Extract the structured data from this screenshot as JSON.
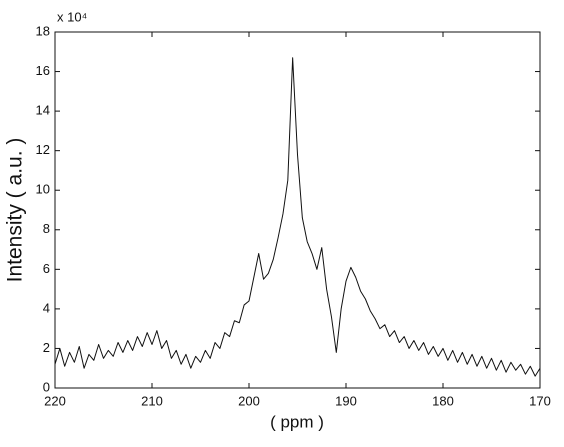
{
  "chart_data": {
    "type": "line",
    "multiplier": "x 10⁴",
    "x_label": "( ppm )",
    "y_label": "Intensity ( a.u. )",
    "x": [
      220,
      219.5,
      219,
      218.5,
      218,
      217.5,
      217,
      216.5,
      216,
      215.5,
      215,
      214.5,
      214,
      213.5,
      213,
      212.5,
      212,
      211.5,
      211,
      210.5,
      210,
      209.5,
      209,
      208.5,
      208,
      207.5,
      207,
      206.5,
      206,
      205.5,
      205,
      204.5,
      204,
      203.5,
      203,
      202.5,
      202,
      201.5,
      201,
      200.5,
      200,
      199.5,
      199,
      198.5,
      198,
      197.5,
      197,
      196.5,
      196,
      195.5,
      195,
      194.5,
      194,
      193.5,
      193,
      192.5,
      192,
      191.5,
      191,
      190.5,
      190,
      189.5,
      189,
      188.5,
      188,
      187.5,
      187,
      186.5,
      186,
      185.5,
      185,
      184.5,
      184,
      183.5,
      183,
      182.5,
      182,
      181.5,
      181,
      180.5,
      180,
      179.5,
      179,
      178.5,
      178,
      177.5,
      177,
      176.5,
      176,
      175.5,
      175,
      174.5,
      174,
      173.5,
      173,
      172.5,
      172,
      171.5,
      171,
      170.5,
      170
    ],
    "series": [
      {
        "color": "#111111",
        "values": [
          1.2,
          2.0,
          1.1,
          1.8,
          1.3,
          2.1,
          1.0,
          1.7,
          1.4,
          2.2,
          1.5,
          1.9,
          1.6,
          2.3,
          1.8,
          2.4,
          1.9,
          2.6,
          2.1,
          2.8,
          2.2,
          2.9,
          2.0,
          2.4,
          1.5,
          1.9,
          1.2,
          1.7,
          1.0,
          1.6,
          1.3,
          1.9,
          1.5,
          2.3,
          2.0,
          2.8,
          2.6,
          3.4,
          3.3,
          4.2,
          4.4,
          5.6,
          6.8,
          5.5,
          5.8,
          6.5,
          7.6,
          8.8,
          10.5,
          16.7,
          11.8,
          8.6,
          7.4,
          6.8,
          6.0,
          7.1,
          5.0,
          3.6,
          1.8,
          4.0,
          5.4,
          6.1,
          5.6,
          4.9,
          4.5,
          3.9,
          3.5,
          3.0,
          3.2,
          2.6,
          2.9,
          2.3,
          2.6,
          2.0,
          2.4,
          1.9,
          2.3,
          1.7,
          2.1,
          1.6,
          2.0,
          1.4,
          1.9,
          1.3,
          1.8,
          1.2,
          1.7,
          1.1,
          1.6,
          1.0,
          1.5,
          0.9,
          1.4,
          0.8,
          1.3,
          0.9,
          1.2,
          0.7,
          1.1,
          0.6,
          1.0
        ]
      }
    ],
    "xlim": [
      220,
      170
    ],
    "xticks": [
      220,
      210,
      200,
      190,
      180,
      170
    ],
    "ylim": [
      0,
      18
    ],
    "yticks": [
      0,
      2,
      4,
      6,
      8,
      10,
      12,
      14,
      16,
      18
    ]
  }
}
